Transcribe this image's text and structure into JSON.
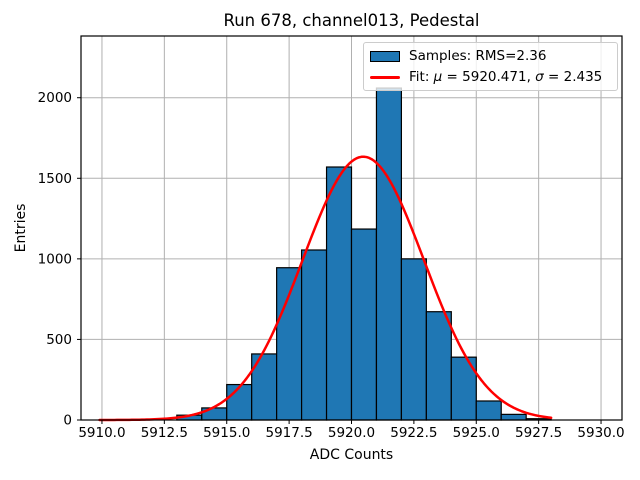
{
  "title": "Run 678, channel013, Pedestal",
  "axes": {
    "xlabel": "ADC Counts",
    "ylabel": "Entries"
  },
  "legend": {
    "samples_label": "Samples: RMS=2.36",
    "fit_label": "Fit: μ = 5920.471, σ = 2.435"
  },
  "colors": {
    "bar_fill": "#1f77b4",
    "bar_edge": "#000000",
    "fit_line": "#ff0000",
    "grid": "#b0b0b0",
    "frame": "#000000"
  },
  "chart_data": {
    "type": "bar",
    "subtype": "histogram",
    "title": "Run 678, channel013, Pedestal",
    "xlabel": "ADC Counts",
    "ylabel": "Entries",
    "bin_width": 1,
    "bin_edges": [
      5913,
      5914,
      5915,
      5916,
      5917,
      5918,
      5919,
      5920,
      5921,
      5922,
      5923,
      5924,
      5925,
      5926,
      5927,
      5928
    ],
    "counts": [
      30,
      75,
      220,
      410,
      945,
      1055,
      1570,
      1185,
      2060,
      1000,
      672,
      390,
      118,
      35,
      8
    ],
    "samples_rms": 2.36,
    "fit": {
      "mu": 5920.471,
      "sigma": 2.435,
      "amplitude": 1634,
      "x_min": 5909.9,
      "x_max": 5928.0
    },
    "xlim": [
      5909.16,
      5930.84
    ],
    "ylim": [
      0,
      2383
    ],
    "xticks": [
      5910.0,
      5912.5,
      5915.0,
      5917.5,
      5920.0,
      5922.5,
      5925.0,
      5927.5,
      5930.0
    ],
    "xtick_labels": [
      "5910.0",
      "5912.5",
      "5915.0",
      "5917.5",
      "5920.0",
      "5922.5",
      "5925.0",
      "5927.5",
      "5930.0"
    ],
    "yticks": [
      0,
      500,
      1000,
      1500,
      2000
    ],
    "ytick_labels": [
      "0",
      "500",
      "1000",
      "1500",
      "2000"
    ],
    "grid": true,
    "legend_position": "upper right",
    "legend_entries": [
      "Samples: RMS=2.36",
      "Fit: μ = 5920.471, σ = 2.435"
    ]
  }
}
